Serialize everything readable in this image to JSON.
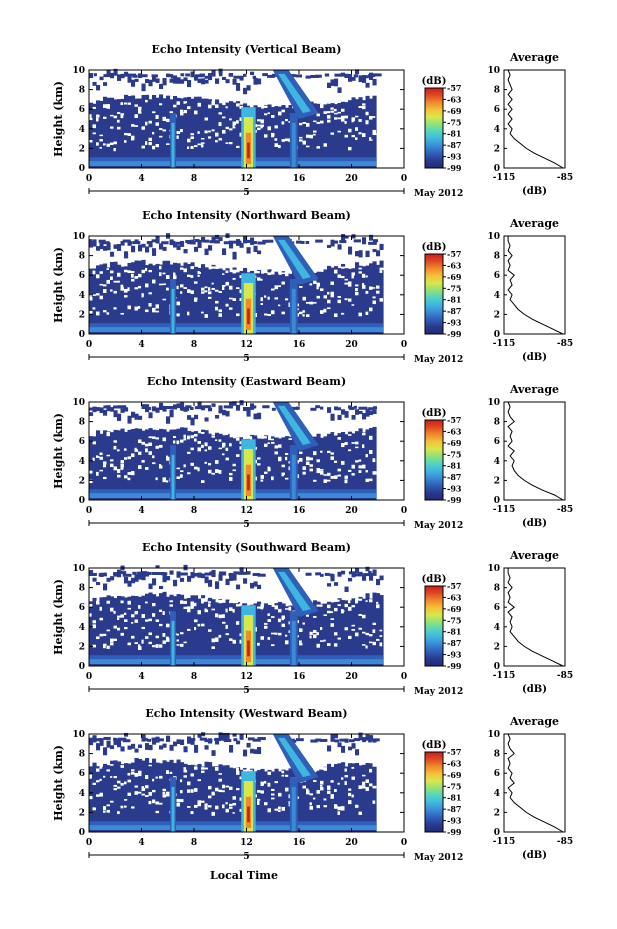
{
  "figure": {
    "xlabel": "Local Time",
    "date_label": "May 2012",
    "day_label": "5",
    "colorbar_unit": "(dB)",
    "avg_title": "Average",
    "avg_xlabel": "(dB)",
    "colors": {
      "no_echo": "#ffffff",
      "background": "#2a3a8c",
      "colormap": [
        "#1f2a7a",
        "#2a3a8c",
        "#2f5fb8",
        "#3a8ad6",
        "#3fb6e0",
        "#52d4c0",
        "#8fe07a",
        "#d8e84a",
        "#f4c23a",
        "#f08a2c",
        "#e04a22",
        "#c81e1e"
      ]
    }
  },
  "chart_data": [
    {
      "type": "heatmap",
      "title": "Echo Intensity (Vertical Beam)",
      "ylabel": "Height (km)",
      "x_ticks": [
        "0",
        "4",
        "8",
        "12",
        "16",
        "20",
        "0"
      ],
      "xlim": [
        0,
        24
      ],
      "y_ticks": [
        "0",
        "2",
        "4",
        "6",
        "8",
        "10"
      ],
      "ylim": [
        0,
        10
      ],
      "colorbar_ticks": [
        "-57",
        "-63",
        "-69",
        "-75",
        "-81",
        "-87",
        "-93",
        "-99"
      ],
      "colorbar_range": [
        -99,
        -57
      ],
      "profile": {
        "title": "Average",
        "xlabel": "(dB)",
        "x_ticks": [
          "-115",
          "-85"
        ],
        "xlim": [
          -115,
          -85
        ],
        "y_ticks": [
          "0",
          "2",
          "4",
          "6",
          "8",
          "10"
        ],
        "ylim": [
          0,
          10
        ],
        "points": [
          [
            -86,
            0
          ],
          [
            -90,
            0.5
          ],
          [
            -95,
            1
          ],
          [
            -100,
            1.5
          ],
          [
            -104,
            2
          ],
          [
            -107,
            2.5
          ],
          [
            -110,
            3
          ],
          [
            -112,
            3.5
          ],
          [
            -111,
            4
          ],
          [
            -113,
            4.5
          ],
          [
            -111,
            5
          ],
          [
            -113,
            5.5
          ],
          [
            -111,
            6
          ],
          [
            -113,
            6.5
          ],
          [
            -111,
            7
          ],
          [
            -113,
            7.5
          ],
          [
            -111,
            8
          ],
          [
            -112,
            8.5
          ],
          [
            -113,
            9
          ],
          [
            -112,
            9.5
          ],
          [
            -113,
            10
          ]
        ]
      }
    },
    {
      "type": "heatmap",
      "title": "Echo Intensity (Northward Beam)",
      "ylabel": "Height (km)",
      "x_ticks": [
        "0",
        "4",
        "8",
        "12",
        "16",
        "20",
        "0"
      ],
      "xlim": [
        0,
        24
      ],
      "y_ticks": [
        "0",
        "2",
        "4",
        "6",
        "8",
        "10"
      ],
      "ylim": [
        0,
        10
      ],
      "colorbar_ticks": [
        "-57",
        "-63",
        "-69",
        "-75",
        "-81",
        "-87",
        "-93",
        "-99"
      ],
      "colorbar_range": [
        -99,
        -57
      ],
      "profile": {
        "title": "Average",
        "xlabel": "(dB)",
        "x_ticks": [
          "-115",
          "-85"
        ],
        "xlim": [
          -115,
          -85
        ],
        "y_ticks": [
          "0",
          "2",
          "4",
          "6",
          "8",
          "10"
        ],
        "ylim": [
          0,
          10
        ],
        "points": [
          [
            -86,
            0
          ],
          [
            -91,
            0.5
          ],
          [
            -96,
            1
          ],
          [
            -101,
            1.5
          ],
          [
            -105,
            2
          ],
          [
            -108,
            2.5
          ],
          [
            -110,
            3
          ],
          [
            -112,
            3.5
          ],
          [
            -111,
            4
          ],
          [
            -113,
            4.5
          ],
          [
            -111,
            5
          ],
          [
            -112,
            5.5
          ],
          [
            -110,
            6
          ],
          [
            -113,
            6.5
          ],
          [
            -112,
            7
          ],
          [
            -113,
            7.5
          ],
          [
            -111,
            8
          ],
          [
            -113,
            8.5
          ],
          [
            -112,
            9
          ],
          [
            -113,
            9.5
          ],
          [
            -113,
            10
          ]
        ]
      }
    },
    {
      "type": "heatmap",
      "title": "Echo Intensity (Eastward Beam)",
      "ylabel": "Height (km)",
      "x_ticks": [
        "0",
        "4",
        "8",
        "12",
        "16",
        "20",
        "0"
      ],
      "xlim": [
        0,
        24
      ],
      "y_ticks": [
        "0",
        "2",
        "4",
        "6",
        "8",
        "10"
      ],
      "ylim": [
        0,
        10
      ],
      "colorbar_ticks": [
        "-57",
        "-63",
        "-69",
        "-75",
        "-81",
        "-87",
        "-93",
        "-99"
      ],
      "colorbar_range": [
        -99,
        -57
      ],
      "profile": {
        "title": "Average",
        "xlabel": "(dB)",
        "x_ticks": [
          "-115",
          "-85"
        ],
        "xlim": [
          -115,
          -85
        ],
        "y_ticks": [
          "0",
          "2",
          "4",
          "6",
          "8",
          "10"
        ],
        "ylim": [
          0,
          10
        ],
        "points": [
          [
            -86,
            0
          ],
          [
            -90,
            0.5
          ],
          [
            -96,
            1
          ],
          [
            -101,
            1.5
          ],
          [
            -105,
            2
          ],
          [
            -108,
            2.5
          ],
          [
            -110,
            3
          ],
          [
            -111,
            3.5
          ],
          [
            -110,
            4
          ],
          [
            -112,
            4.5
          ],
          [
            -110,
            5
          ],
          [
            -113,
            5.5
          ],
          [
            -111,
            6
          ],
          [
            -112,
            6.5
          ],
          [
            -111,
            7
          ],
          [
            -113,
            7.5
          ],
          [
            -110,
            8
          ],
          [
            -112,
            8.5
          ],
          [
            -113,
            9
          ],
          [
            -112,
            9.5
          ],
          [
            -113,
            10
          ]
        ]
      }
    },
    {
      "type": "heatmap",
      "title": "Echo Intensity (Southward Beam)",
      "ylabel": "Height (km)",
      "x_ticks": [
        "0",
        "4",
        "8",
        "12",
        "16",
        "20",
        "0"
      ],
      "xlim": [
        0,
        24
      ],
      "y_ticks": [
        "0",
        "2",
        "4",
        "6",
        "8",
        "10"
      ],
      "ylim": [
        0,
        10
      ],
      "colorbar_ticks": [
        "-57",
        "-63",
        "-69",
        "-75",
        "-81",
        "-87",
        "-93",
        "-99"
      ],
      "colorbar_range": [
        -99,
        -57
      ],
      "profile": {
        "title": "Average",
        "xlabel": "(dB)",
        "x_ticks": [
          "-115",
          "-85"
        ],
        "xlim": [
          -115,
          -85
        ],
        "y_ticks": [
          "0",
          "2",
          "4",
          "6",
          "8",
          "10"
        ],
        "ylim": [
          0,
          10
        ],
        "points": [
          [
            -86,
            0
          ],
          [
            -91,
            0.5
          ],
          [
            -96,
            1
          ],
          [
            -101,
            1.5
          ],
          [
            -105,
            2
          ],
          [
            -108,
            2.5
          ],
          [
            -110,
            3
          ],
          [
            -112,
            3.5
          ],
          [
            -111,
            4
          ],
          [
            -112,
            4.5
          ],
          [
            -111,
            5
          ],
          [
            -113,
            5.5
          ],
          [
            -110,
            6
          ],
          [
            -113,
            6.5
          ],
          [
            -112,
            7
          ],
          [
            -113,
            7.5
          ],
          [
            -111,
            8
          ],
          [
            -113,
            8.5
          ],
          [
            -112,
            9
          ],
          [
            -113,
            9.5
          ],
          [
            -113,
            10
          ]
        ]
      }
    },
    {
      "type": "heatmap",
      "title": "Echo Intensity (Westward Beam)",
      "ylabel": "Height (km)",
      "x_ticks": [
        "0",
        "4",
        "8",
        "12",
        "16",
        "20",
        "0"
      ],
      "xlim": [
        0,
        24
      ],
      "y_ticks": [
        "0",
        "2",
        "4",
        "6",
        "8",
        "10"
      ],
      "ylim": [
        0,
        10
      ],
      "colorbar_ticks": [
        "-57",
        "-63",
        "-69",
        "-75",
        "-81",
        "-87",
        "-93",
        "-99"
      ],
      "colorbar_range": [
        -99,
        -57
      ],
      "profile": {
        "title": "Average",
        "xlabel": "(dB)",
        "x_ticks": [
          "-115",
          "-85"
        ],
        "xlim": [
          -115,
          -85
        ],
        "y_ticks": [
          "0",
          "2",
          "4",
          "6",
          "8",
          "10"
        ],
        "ylim": [
          0,
          10
        ],
        "points": [
          [
            -86,
            0
          ],
          [
            -90,
            0.5
          ],
          [
            -95,
            1
          ],
          [
            -100,
            1.5
          ],
          [
            -104,
            2
          ],
          [
            -107,
            2.5
          ],
          [
            -110,
            3
          ],
          [
            -112,
            3.5
          ],
          [
            -111,
            4
          ],
          [
            -113,
            4.5
          ],
          [
            -110,
            5
          ],
          [
            -112,
            5.5
          ],
          [
            -111,
            6
          ],
          [
            -113,
            6.5
          ],
          [
            -112,
            7
          ],
          [
            -113,
            7.5
          ],
          [
            -110,
            8
          ],
          [
            -112,
            8.5
          ],
          [
            -113,
            9
          ],
          [
            -112,
            9.5
          ],
          [
            -113,
            10
          ]
        ]
      }
    }
  ]
}
